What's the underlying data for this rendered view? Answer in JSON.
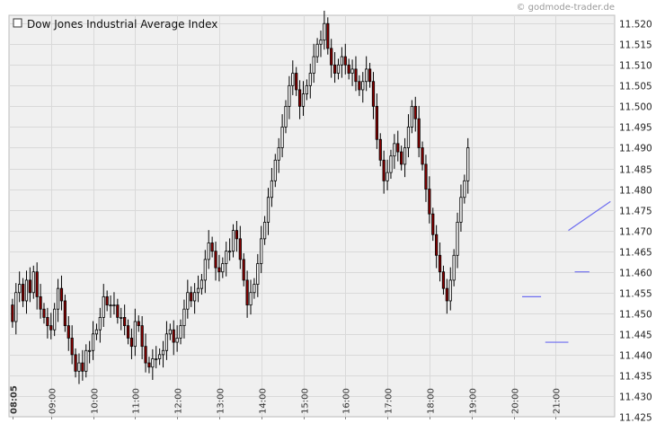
{
  "watermark": "© godmode-trader.de",
  "chart_data": {
    "type": "candlestick",
    "title": "Dow Jones Industrial Average Index",
    "legend": {
      "label": "Dow Jones Industrial Average Index",
      "placement": "top-left"
    },
    "ylim": [
      11425,
      11522
    ],
    "y_ticks": [
      "11.520",
      "11.515",
      "11.510",
      "11.505",
      "11.500",
      "11.495",
      "11.490",
      "11.485",
      "11.480",
      "11.475",
      "11.470",
      "11.465",
      "11.460",
      "11.455",
      "11.450",
      "11.445",
      "11.440",
      "11.435",
      "11.430",
      "11.425"
    ],
    "y_tick_values": [
      11520,
      11515,
      11510,
      11505,
      11500,
      11495,
      11490,
      11485,
      11480,
      11475,
      11470,
      11465,
      11460,
      11455,
      11450,
      11445,
      11440,
      11435,
      11430,
      11425
    ],
    "x_range_hours": [
      8.0,
      22.4
    ],
    "x_ticks": [
      {
        "label": "08:05",
        "hour": 8.083,
        "bold": true
      },
      {
        "label": "09:00",
        "hour": 9.0
      },
      {
        "label": "10:00",
        "hour": 10.0
      },
      {
        "label": "11:00",
        "hour": 11.0
      },
      {
        "label": "12:00",
        "hour": 12.0
      },
      {
        "label": "13:00",
        "hour": 13.0
      },
      {
        "label": "14:00",
        "hour": 14.0
      },
      {
        "label": "15:00",
        "hour": 15.0
      },
      {
        "label": "16:00",
        "hour": 16.0
      },
      {
        "label": "17:00",
        "hour": 17.0
      },
      {
        "label": "18:00",
        "hour": 18.0
      },
      {
        "label": "19:00",
        "hour": 19.0
      },
      {
        "label": "20:00",
        "hour": 20.0
      },
      {
        "label": "21:00",
        "hour": 21.0
      }
    ],
    "colors": {
      "up": "#ffffff",
      "down": "#8b0000",
      "wick": "#000000",
      "annotation": "#6d6df0"
    },
    "start_hour": 8.083,
    "candle_interval_hours": 0.0833,
    "start_close": 11452,
    "closes": [
      11448,
      11455,
      11457,
      11453,
      11458,
      11455,
      11460,
      11454,
      11451,
      11449,
      11447,
      11446,
      11451,
      11456,
      11453,
      11447,
      11444,
      11440,
      11436,
      11438,
      11436,
      11441,
      11441,
      11445,
      11446,
      11449,
      11454,
      11452,
      11452,
      11452,
      11449,
      11449,
      11447,
      11444,
      11442,
      11448,
      11447,
      11442,
      11438,
      11437,
      11439,
      11439,
      11440,
      11441,
      11445,
      11446,
      11443,
      11444,
      11447,
      11451,
      11455,
      11453,
      11455,
      11456,
      11458,
      11463,
      11467,
      11465,
      11461,
      11460,
      11462,
      11465,
      11465,
      11470,
      11468,
      11463,
      11458,
      11452,
      11455,
      11457,
      11462,
      11468,
      11472,
      11478,
      11482,
      11487,
      11490,
      11495,
      11500,
      11505,
      11508,
      11504,
      11500,
      11503,
      11505,
      11508,
      11512,
      11515,
      11516,
      11520,
      11514,
      11510,
      11508,
      11510,
      11512,
      11510,
      11508,
      11509,
      11506,
      11504,
      11506,
      11509,
      11506,
      11500,
      11492,
      11487,
      11482,
      11484,
      11488,
      11491,
      11489,
      11486,
      11490,
      11495,
      11500,
      11497,
      11490,
      11486,
      11480,
      11474,
      11469,
      11464,
      11460,
      11456,
      11453,
      11458,
      11464,
      11472,
      11478,
      11482,
      11490
    ],
    "annotations": [
      {
        "type": "trendline",
        "from": {
          "hour": 21.3,
          "value": 11470
        },
        "to": {
          "hour": 22.3,
          "value": 11477
        }
      },
      {
        "type": "level",
        "from_hour": 20.2,
        "to_hour": 20.65,
        "value": 11454
      },
      {
        "type": "level",
        "from_hour": 20.75,
        "to_hour": 21.3,
        "value": 11443
      },
      {
        "type": "level",
        "from_hour": 21.45,
        "to_hour": 21.8,
        "value": 11460
      }
    ]
  }
}
